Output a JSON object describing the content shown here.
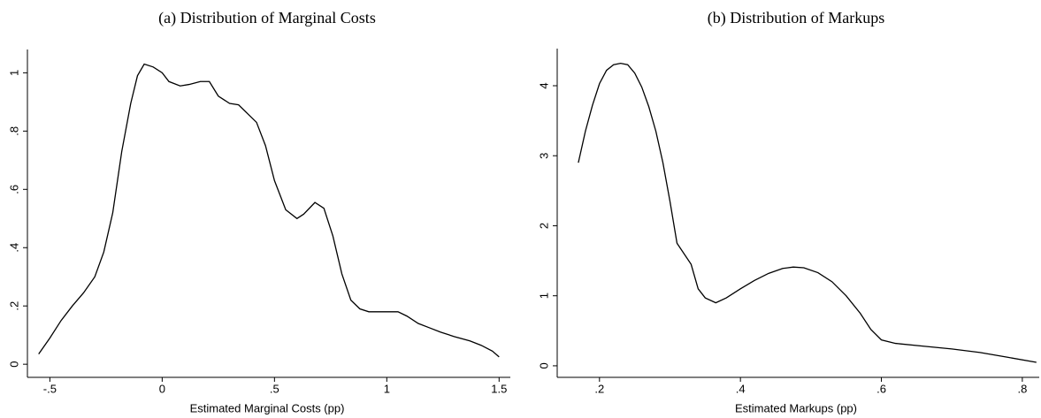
{
  "chart_data": [
    {
      "type": "line",
      "title": "(a) Distribution of Marginal Costs",
      "xlabel": "Estimated Marginal Costs (pp)",
      "color": "#000000",
      "x": [
        -0.55,
        -0.5,
        -0.45,
        -0.4,
        -0.35,
        -0.3,
        -0.26,
        -0.22,
        -0.18,
        -0.14,
        -0.11,
        -0.08,
        -0.04,
        0,
        0.03,
        0.08,
        0.12,
        0.17,
        0.21,
        0.25,
        0.3,
        0.34,
        0.38,
        0.42,
        0.46,
        0.5,
        0.55,
        0.6,
        0.63,
        0.68,
        0.72,
        0.76,
        0.8,
        0.84,
        0.88,
        0.92,
        1.0,
        1.05,
        1.09,
        1.14,
        1.19,
        1.24,
        1.3,
        1.37,
        1.42,
        1.47,
        1.5
      ],
      "values": [
        0.035,
        0.09,
        0.15,
        0.2,
        0.245,
        0.3,
        0.385,
        0.52,
        0.73,
        0.895,
        0.99,
        1.03,
        1.02,
        1.0,
        0.97,
        0.955,
        0.96,
        0.97,
        0.97,
        0.92,
        0.895,
        0.89,
        0.86,
        0.83,
        0.75,
        0.63,
        0.53,
        0.5,
        0.515,
        0.555,
        0.535,
        0.44,
        0.31,
        0.22,
        0.19,
        0.18,
        0.18,
        0.18,
        0.165,
        0.14,
        0.125,
        0.11,
        0.095,
        0.08,
        0.065,
        0.045,
        0.025
      ],
      "xlim": [
        -0.6,
        1.55
      ],
      "ylim": [
        -0.045,
        1.08
      ],
      "xticks": [
        {
          "value": -0.5,
          "label": "-.5"
        },
        0,
        {
          "value": 0.5,
          "label": ".5"
        },
        1,
        1.5
      ],
      "yticks": [
        0,
        {
          "value": 0.2,
          "label": ".2"
        },
        {
          "value": 0.4,
          "label": ".4"
        },
        {
          "value": 0.6,
          "label": ".6"
        },
        {
          "value": 0.8,
          "label": ".8"
        },
        1
      ]
    },
    {
      "type": "line",
      "title": "(b) Distribution of Markups",
      "xlabel": "Estimated Markups (pp)",
      "color": "#000000",
      "x": [
        0.17,
        0.18,
        0.19,
        0.2,
        0.21,
        0.22,
        0.23,
        0.24,
        0.25,
        0.26,
        0.27,
        0.28,
        0.29,
        0.3,
        0.31,
        0.33,
        0.34,
        0.35,
        0.365,
        0.38,
        0.4,
        0.42,
        0.44,
        0.46,
        0.475,
        0.49,
        0.51,
        0.53,
        0.55,
        0.57,
        0.585,
        0.6,
        0.62,
        0.66,
        0.7,
        0.74,
        0.78,
        0.82
      ],
      "values": [
        2.9,
        3.35,
        3.72,
        4.03,
        4.22,
        4.3,
        4.32,
        4.3,
        4.18,
        3.98,
        3.7,
        3.35,
        2.9,
        2.35,
        1.75,
        1.45,
        1.1,
        0.97,
        0.9,
        0.97,
        1.1,
        1.22,
        1.32,
        1.39,
        1.41,
        1.4,
        1.33,
        1.2,
        1.0,
        0.75,
        0.52,
        0.37,
        0.32,
        0.28,
        0.24,
        0.19,
        0.12,
        0.05
      ],
      "xlim": [
        0.14,
        0.824
      ],
      "ylim": [
        -0.165,
        4.53
      ],
      "xticks": [
        {
          "value": 0.2,
          "label": ".2"
        },
        {
          "value": 0.4,
          "label": ".4"
        },
        {
          "value": 0.6,
          "label": ".6"
        },
        {
          "value": 0.8,
          "label": ".8"
        }
      ],
      "yticks": [
        0,
        1,
        2,
        3,
        4
      ]
    }
  ]
}
